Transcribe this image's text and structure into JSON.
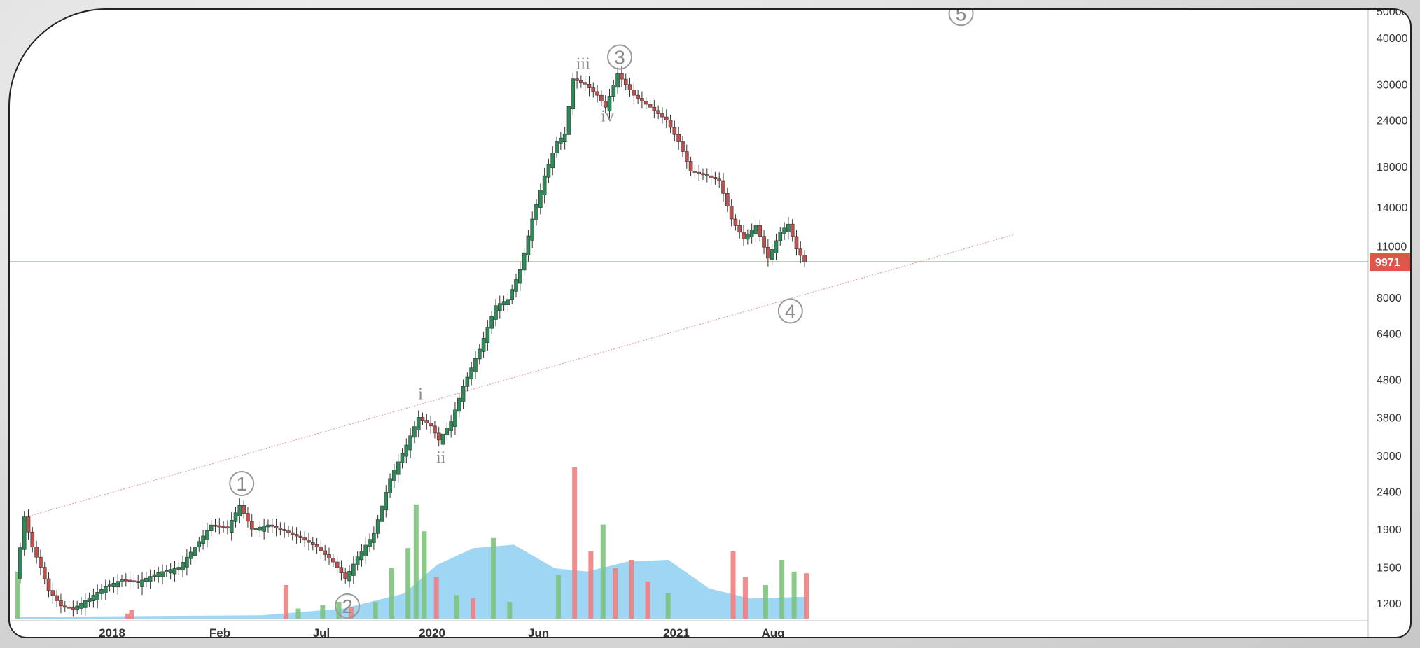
{
  "chart_data": {
    "type": "candlestick",
    "title": "",
    "xlabel": "",
    "ylabel": "",
    "scale": "log",
    "ylim": [
      1100,
      52000
    ],
    "y_ticks": [
      1200,
      1500,
      1900,
      2400,
      3000,
      3800,
      4800,
      6400,
      8000,
      11000,
      14000,
      18000,
      24000,
      30000,
      40000
    ],
    "x_ticks": [
      "2018",
      "Feb",
      "Jul",
      "2020",
      "Jun",
      "2021",
      "Aug"
    ],
    "current_price": 9971,
    "current_price_label": "9971",
    "price_line_color": "#e07060",
    "up_color": "#2e8b57",
    "down_color": "#c0504d",
    "volume_up_color": "#7cc47c",
    "volume_down_color": "#f08080",
    "volume_ma_color": "#7ec8f0",
    "price_path": [
      [
        0,
        1400
      ],
      [
        2,
        2050
      ],
      [
        4,
        1700
      ],
      [
        6,
        1500
      ],
      [
        8,
        1300
      ],
      [
        11,
        1180
      ],
      [
        14,
        1160
      ],
      [
        18,
        1240
      ],
      [
        22,
        1330
      ],
      [
        26,
        1390
      ],
      [
        30,
        1370
      ],
      [
        35,
        1450
      ],
      [
        40,
        1500
      ],
      [
        44,
        1700
      ],
      [
        48,
        1950
      ],
      [
        52,
        1920
      ],
      [
        55,
        2200
      ],
      [
        58,
        1900
      ],
      [
        62,
        1950
      ],
      [
        66,
        1880
      ],
      [
        70,
        1800
      ],
      [
        74,
        1700
      ],
      [
        78,
        1550
      ],
      [
        81,
        1400
      ],
      [
        84,
        1600
      ],
      [
        88,
        1850
      ],
      [
        92,
        2600
      ],
      [
        96,
        3200
      ],
      [
        99,
        3800
      ],
      [
        102,
        3600
      ],
      [
        104,
        3300
      ],
      [
        107,
        3700
      ],
      [
        110,
        4600
      ],
      [
        114,
        5800
      ],
      [
        118,
        7600
      ],
      [
        121,
        7900
      ],
      [
        124,
        9500
      ],
      [
        127,
        13000
      ],
      [
        130,
        17000
      ],
      [
        133,
        21000
      ],
      [
        135,
        22000
      ],
      [
        137,
        31000
      ],
      [
        140,
        30000
      ],
      [
        143,
        28000
      ],
      [
        145,
        26000
      ],
      [
        148,
        32000
      ],
      [
        152,
        28000
      ],
      [
        156,
        26000
      ],
      [
        160,
        24000
      ],
      [
        163,
        21000
      ],
      [
        166,
        17500
      ],
      [
        170,
        17000
      ],
      [
        173,
        16500
      ],
      [
        176,
        13000
      ],
      [
        179,
        11500
      ],
      [
        182,
        12500
      ],
      [
        185,
        10200
      ],
      [
        188,
        12000
      ],
      [
        190,
        12600
      ],
      [
        192,
        10800
      ],
      [
        194,
        9971
      ]
    ],
    "x_max": 260,
    "volume": [
      [
        0,
        0.28,
        "up"
      ],
      [
        27,
        0.03,
        "down"
      ],
      [
        28,
        0.05,
        "down"
      ],
      [
        66,
        0.2,
        "down"
      ],
      [
        69,
        0.06,
        "up"
      ],
      [
        75,
        0.08,
        "up"
      ],
      [
        79,
        0.1,
        "up"
      ],
      [
        82,
        0.07,
        "down"
      ],
      [
        88,
        0.1,
        "up"
      ],
      [
        92,
        0.3,
        "up"
      ],
      [
        96,
        0.42,
        "up"
      ],
      [
        98,
        0.68,
        "up"
      ],
      [
        100,
        0.52,
        "up"
      ],
      [
        103,
        0.25,
        "down"
      ],
      [
        108,
        0.14,
        "up"
      ],
      [
        112,
        0.12,
        "down"
      ],
      [
        117,
        0.48,
        "up"
      ],
      [
        121,
        0.1,
        "up"
      ],
      [
        133,
        0.26,
        "up"
      ],
      [
        137,
        0.9,
        "down"
      ],
      [
        141,
        0.4,
        "down"
      ],
      [
        144,
        0.56,
        "up"
      ],
      [
        147,
        0.3,
        "down"
      ],
      [
        151,
        0.35,
        "down"
      ],
      [
        155,
        0.22,
        "down"
      ],
      [
        160,
        0.15,
        "up"
      ],
      [
        176,
        0.4,
        "down"
      ],
      [
        179,
        0.25,
        "down"
      ],
      [
        184,
        0.2,
        "up"
      ],
      [
        188,
        0.35,
        "up"
      ],
      [
        191,
        0.28,
        "up"
      ],
      [
        194,
        0.27,
        "down"
      ]
    ],
    "volume_ma": [
      [
        0,
        0.01
      ],
      [
        60,
        0.02
      ],
      [
        80,
        0.06
      ],
      [
        95,
        0.15
      ],
      [
        103,
        0.32
      ],
      [
        112,
        0.42
      ],
      [
        122,
        0.44
      ],
      [
        132,
        0.3
      ],
      [
        140,
        0.28
      ],
      [
        150,
        0.34
      ],
      [
        160,
        0.35
      ],
      [
        170,
        0.18
      ],
      [
        180,
        0.12
      ],
      [
        194,
        0.13
      ]
    ],
    "trendline": {
      "from": [
        2,
        2050
      ],
      "to": [
        245,
        11800
      ]
    },
    "wave_labels": [
      {
        "label": "1",
        "style": "circle",
        "at": [
          55,
          2520
        ]
      },
      {
        "label": "2",
        "style": "circle",
        "at": [
          81,
          1180
        ]
      },
      {
        "label": "3",
        "style": "circle",
        "at": [
          148,
          35500
        ]
      },
      {
        "label": "4",
        "style": "circle",
        "at": [
          190,
          7350
        ]
      },
      {
        "label": "5",
        "style": "circle",
        "at": [
          232,
          46500
        ]
      },
      {
        "label": "i",
        "style": "text",
        "at": [
          99,
          4250
        ]
      },
      {
        "label": "ii",
        "style": "text",
        "at": [
          104,
          2870
        ]
      },
      {
        "label": "iii",
        "style": "text",
        "at": [
          139,
          33000
        ]
      },
      {
        "label": "iv",
        "style": "text",
        "at": [
          145,
          23800
        ]
      }
    ]
  }
}
